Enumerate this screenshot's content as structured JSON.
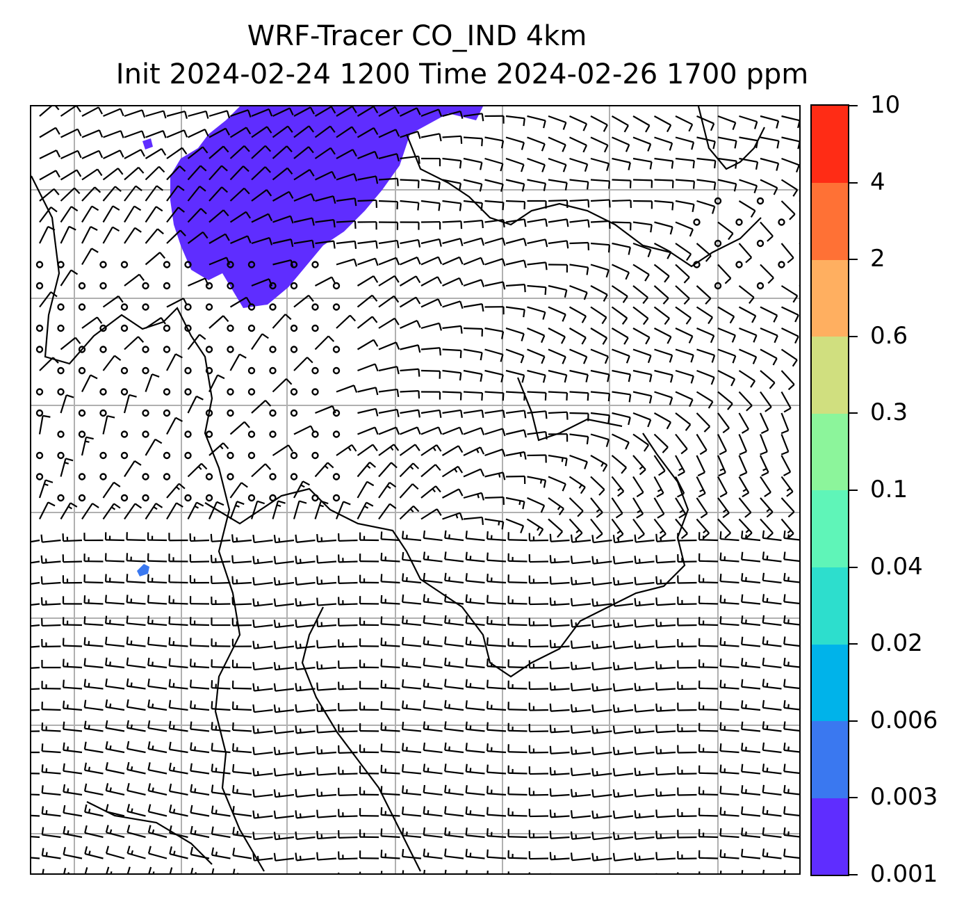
{
  "title": {
    "line1": "WRF-Tracer CO_IND 4km",
    "line2": "Init 2024-02-24 1200 Time 2024-02-26 1700 ppm"
  },
  "colorbar": {
    "ticks": [
      "0.001",
      "0.003",
      "0.006",
      "0.02",
      "0.04",
      "0.1",
      "0.3",
      "0.6",
      "2",
      "4",
      "10"
    ],
    "colors": [
      "#5f2dff",
      "#3a78f0",
      "#00b3ea",
      "#2ddecd",
      "#5ff5b8",
      "#8cf59b",
      "#d0df7f",
      "#ffaf60",
      "#ff7135",
      "#ff2c15"
    ]
  },
  "map": {
    "variable": "CO_IND tracer concentration",
    "units": "ppm",
    "overlay": "wind barbs",
    "plume_color": "#5f2dff",
    "small_patch_colors": [
      "#3a78f0",
      "#5f2dff"
    ],
    "gridline_color": "#b0b0b0",
    "coastline_color": "#000000"
  }
}
